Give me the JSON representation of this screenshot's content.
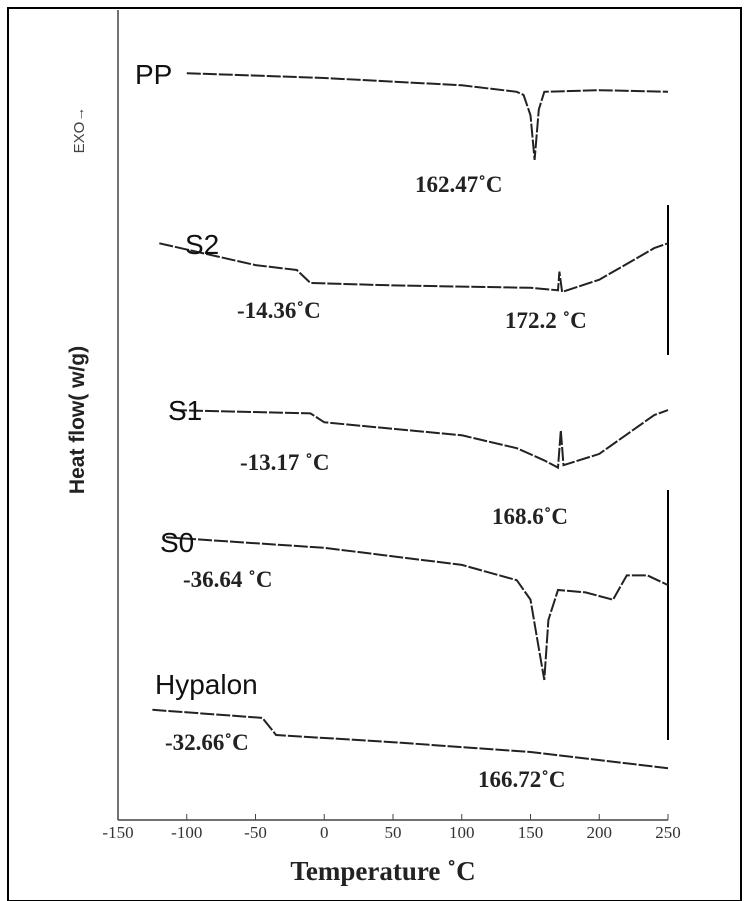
{
  "chart_data": {
    "type": "line",
    "xlabel": "Temperature ˚C",
    "ylabel": "Heat flow( w/g)",
    "y_note": "EXO→",
    "xlim": [
      -150,
      250
    ],
    "xticks": [
      -150,
      -100,
      -50,
      0,
      50,
      100,
      150,
      200,
      250
    ],
    "ylim": [
      0,
      100
    ],
    "series": [
      {
        "name": "PP",
        "color": "#222222",
        "x": [
          -100,
          0,
          100,
          140,
          145,
          150,
          153,
          156,
          160,
          200,
          250
        ],
        "values": [
          92.2,
          91.6,
          90.7,
          89.9,
          89.5,
          87.0,
          81.5,
          87.7,
          89.9,
          90.1,
          89.9
        ]
      },
      {
        "name": "S2",
        "color": "#222222",
        "x": [
          -120,
          -50,
          -20,
          -10,
          50,
          150,
          170,
          171,
          173,
          200,
          240,
          250
        ],
        "values": [
          71.2,
          68.5,
          67.9,
          66.3,
          66.0,
          65.7,
          65.4,
          67.7,
          65.2,
          66.7,
          70.6,
          71.2
        ]
      },
      {
        "name": "S1",
        "color": "#222222",
        "x": [
          -110,
          -10,
          0,
          100,
          140,
          160,
          170,
          172,
          174,
          200,
          240,
          250
        ],
        "values": [
          50.6,
          50.2,
          49.1,
          47.5,
          45.9,
          44.4,
          43.5,
          48.1,
          43.8,
          45.2,
          50.0,
          50.6
        ]
      },
      {
        "name": "S0",
        "color": "#222222",
        "x": [
          -115,
          0,
          100,
          140,
          150,
          155,
          160,
          163,
          170,
          190,
          210,
          220,
          235,
          250
        ],
        "values": [
          34.9,
          33.6,
          31.5,
          29.6,
          27.2,
          22.2,
          17.3,
          24.7,
          28.4,
          28.1,
          27.2,
          30.2,
          30.2,
          29.0
        ]
      },
      {
        "name": "Hypalon",
        "color": "#222222",
        "x": [
          -125,
          -45,
          -35,
          50,
          150,
          250
        ],
        "values": [
          13.6,
          12.6,
          10.5,
          9.6,
          8.4,
          6.4
        ]
      }
    ],
    "annotations": [
      "162.47˚C",
      "-14.36˚C",
      "172.2 ˚C",
      "-13.17 ˚C",
      "168.6˚C",
      "-36.64 ˚C",
      "166.72˚C",
      "-32.66˚C"
    ]
  }
}
